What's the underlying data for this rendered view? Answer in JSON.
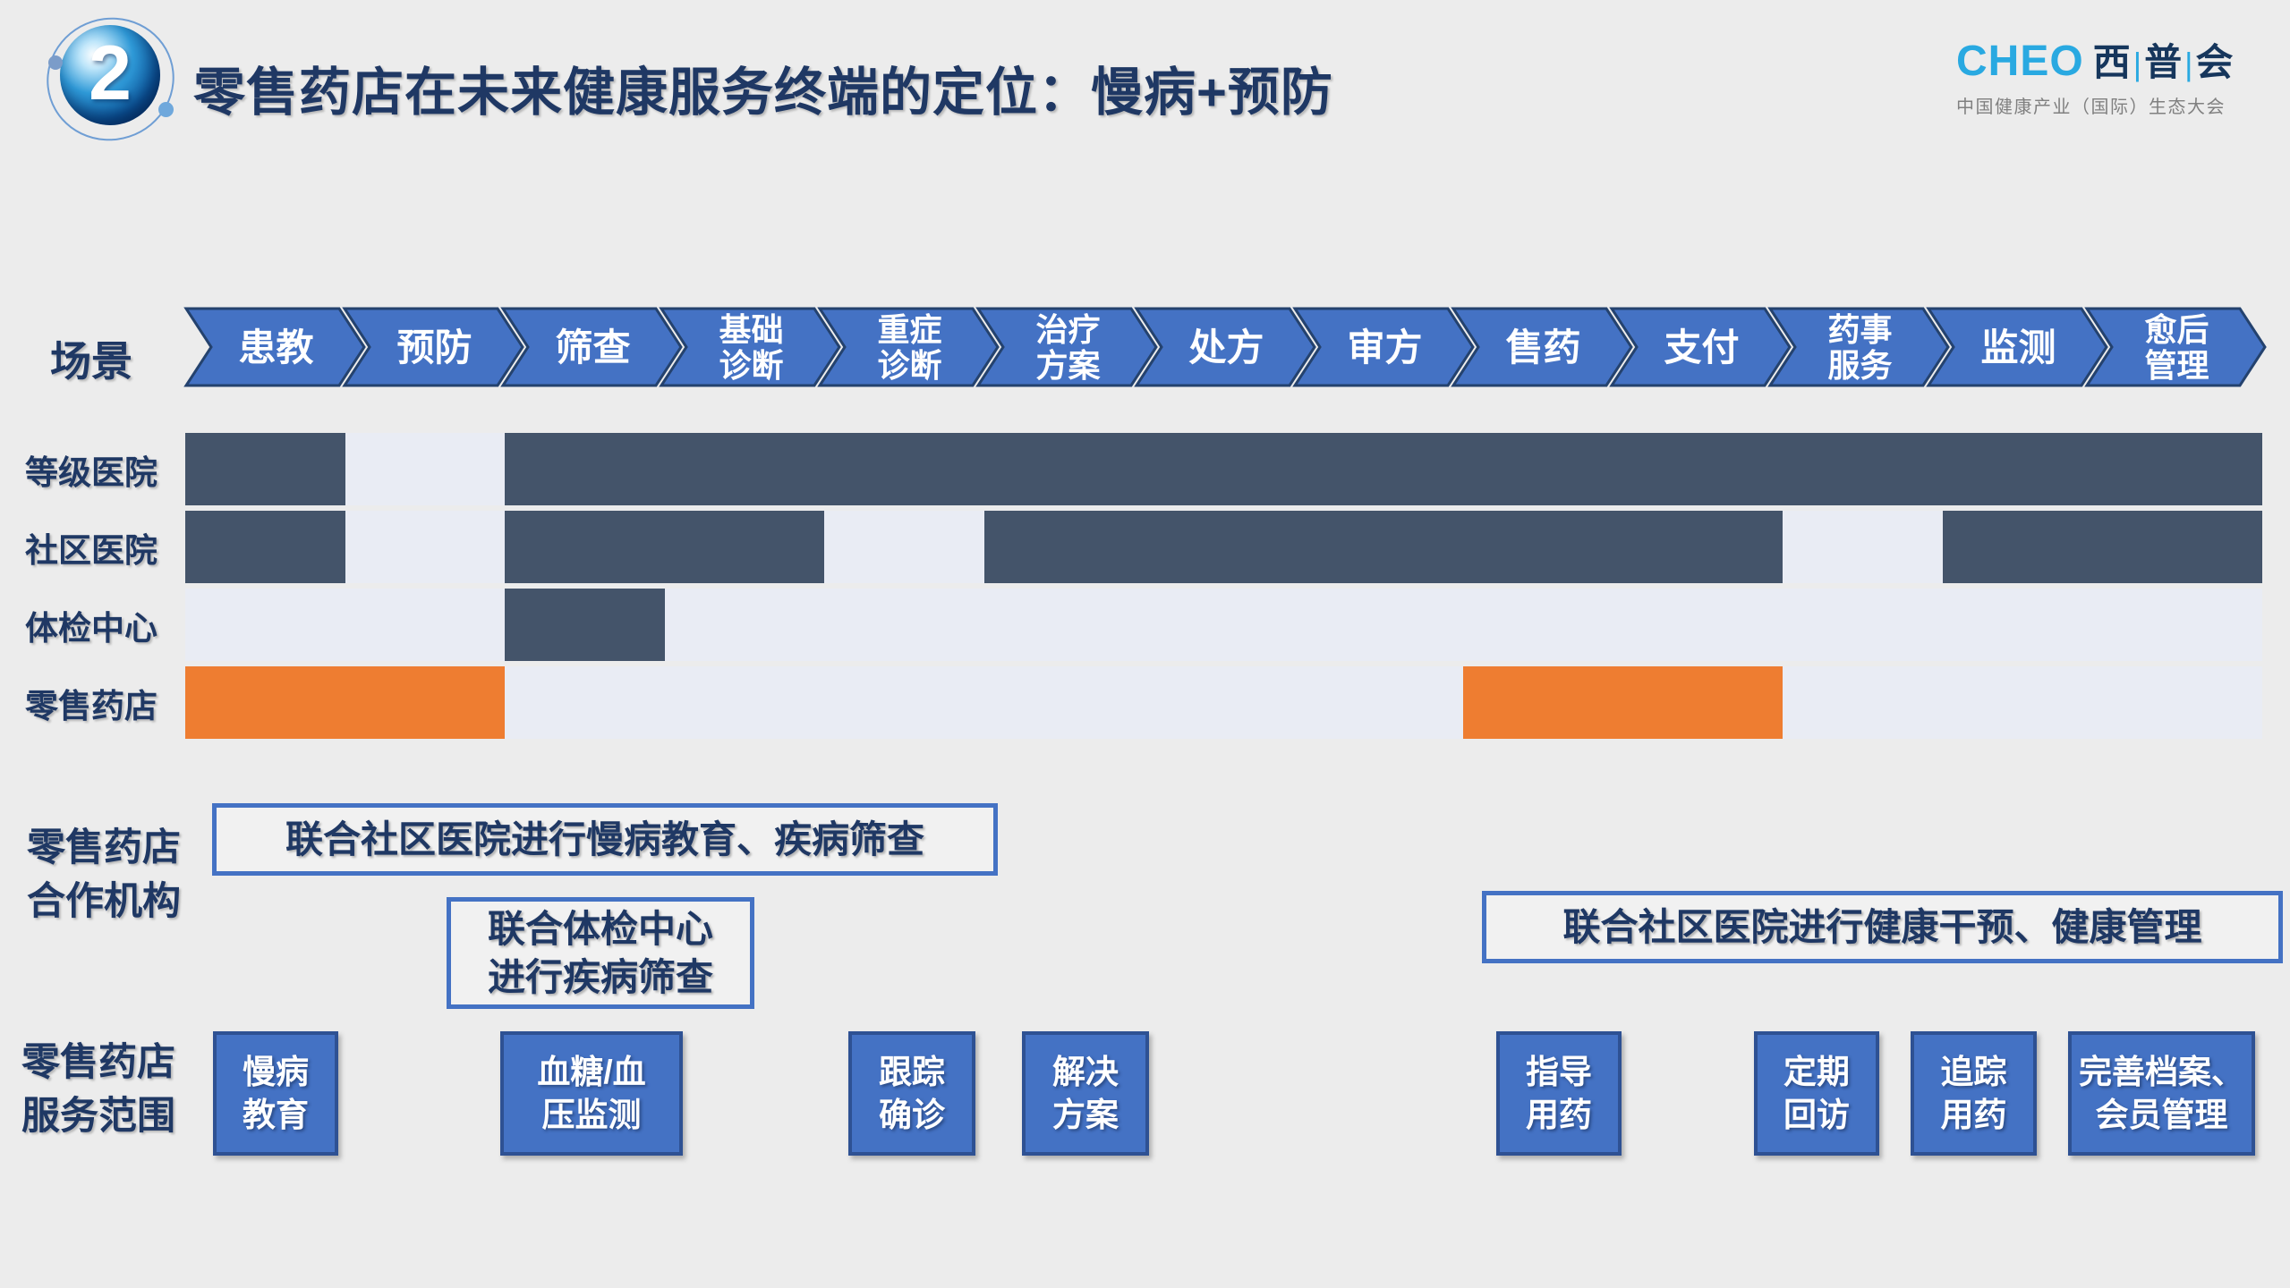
{
  "colors": {
    "background": "#ececec",
    "navy_text": "#1f3864",
    "chevron_fill": "#4472c4",
    "chevron_border": "#24426e",
    "cell_filled": "#44546a",
    "cell_empty": "#e9ecf4",
    "cell_highlight": "#ee7d31",
    "service_box_fill": "#4472c4",
    "service_box_border": "#2e5193",
    "logo_blue": "#29a9e1"
  },
  "header": {
    "badge_number": "2",
    "title": "零售药店在未来健康服务终端的定位：慢病+预防",
    "logo": {
      "brand": "CHEO",
      "brand_cn": "西|普|会",
      "subtitle": "中国健康产业（国际）生态大会"
    }
  },
  "scene": {
    "label": "场景",
    "steps": [
      {
        "lines": [
          "患教"
        ]
      },
      {
        "lines": [
          "预防"
        ]
      },
      {
        "lines": [
          "筛查"
        ]
      },
      {
        "lines": [
          "基础",
          "诊断"
        ]
      },
      {
        "lines": [
          "重症",
          "诊断"
        ]
      },
      {
        "lines": [
          "治疗",
          "方案"
        ]
      },
      {
        "lines": [
          "处方"
        ]
      },
      {
        "lines": [
          "审方"
        ]
      },
      {
        "lines": [
          "售药"
        ]
      },
      {
        "lines": [
          "支付"
        ]
      },
      {
        "lines": [
          "药事",
          "服务"
        ]
      },
      {
        "lines": [
          "监测"
        ]
      },
      {
        "lines": [
          "愈后",
          "管理"
        ]
      }
    ]
  },
  "matrix": {
    "cell_legend": {
      "0": "empty",
      "1": "covered",
      "2": "retail-pharmacy-highlight"
    },
    "rows": [
      {
        "label": "等级医院",
        "cells": [
          1,
          0,
          1,
          1,
          1,
          1,
          1,
          1,
          1,
          1,
          1,
          1,
          1
        ]
      },
      {
        "label": "社区医院",
        "cells": [
          1,
          0,
          1,
          1,
          0,
          1,
          1,
          1,
          1,
          1,
          0,
          1,
          1
        ]
      },
      {
        "label": "体检中心",
        "cells": [
          0,
          0,
          1,
          0,
          0,
          0,
          0,
          0,
          0,
          0,
          0,
          0,
          0
        ]
      },
      {
        "label": "零售药店",
        "cells": [
          2,
          2,
          0,
          0,
          0,
          0,
          0,
          0,
          2,
          2,
          0,
          0,
          0
        ]
      }
    ]
  },
  "partners": {
    "label_lines": [
      "零售药店",
      "合作机构"
    ],
    "callouts": [
      {
        "lines": [
          "联合社区医院进行慢病教育、疾病筛查"
        ]
      },
      {
        "lines": [
          "联合体检中心",
          "进行疾病筛查"
        ]
      },
      {
        "lines": [
          "联合社区医院进行健康干预、健康管理"
        ]
      }
    ]
  },
  "services": {
    "label_lines": [
      "零售药店",
      "服务范围"
    ],
    "boxes": [
      {
        "lines": [
          "慢病",
          "教育"
        ]
      },
      {
        "lines": [
          "血糖/血",
          "压监测"
        ]
      },
      {
        "lines": [
          "跟踪",
          "确诊"
        ]
      },
      {
        "lines": [
          "解决",
          "方案"
        ]
      },
      {
        "lines": [
          "指导",
          "用药"
        ]
      },
      {
        "lines": [
          "定期",
          "回访"
        ]
      },
      {
        "lines": [
          "追踪",
          "用药"
        ]
      },
      {
        "lines": [
          "完善档案、",
          "会员管理"
        ]
      }
    ]
  }
}
